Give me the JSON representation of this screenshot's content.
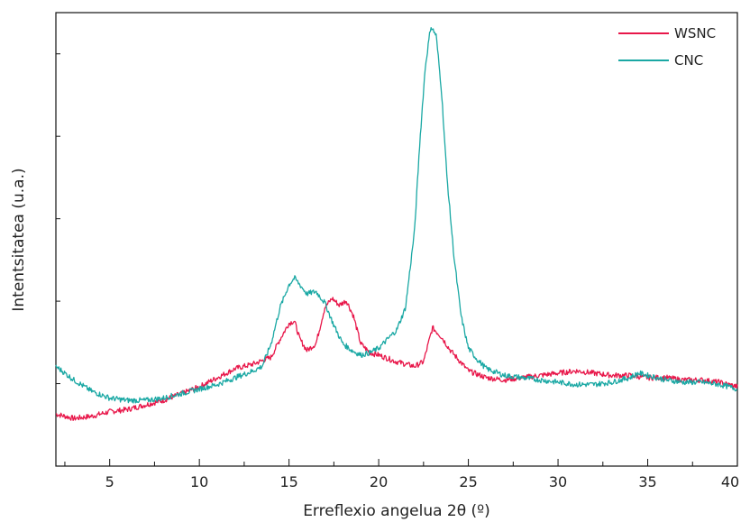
{
  "chart_data": {
    "type": "line",
    "xlabel": "Erreflexio angelua 2θ (º)",
    "ylabel": "Intentsitatea (u.a.)",
    "xlim": [
      2,
      40
    ],
    "ylim": [
      0,
      100
    ],
    "x_ticks": [
      5,
      10,
      15,
      20,
      25,
      30,
      35,
      40
    ],
    "y_tick_labels_shown": false,
    "grid": false,
    "legend": "top-right",
    "colors": {
      "WSNC": "#e8174a",
      "CNC": "#1aa8a4"
    },
    "series": [
      {
        "name": "WSNC",
        "x": [
          2,
          3,
          4,
          5,
          6,
          7,
          8,
          9,
          10,
          11,
          12,
          13,
          14,
          14.5,
          15,
          15.3,
          15.6,
          16,
          16.5,
          17,
          17.4,
          17.8,
          18.2,
          18.6,
          19,
          19.5,
          20,
          21,
          22,
          22.5,
          23,
          23.5,
          24,
          25,
          26,
          27,
          28,
          29,
          30,
          31,
          32,
          33,
          34,
          35,
          36,
          37,
          38,
          39,
          40
        ],
        "y": [
          11.5,
          10.5,
          11,
          12,
          12.5,
          13.5,
          14.5,
          16,
          17.5,
          19.5,
          21.5,
          22.5,
          24,
          28,
          31.5,
          32,
          28,
          25.5,
          27,
          35,
          37,
          35.5,
          36.5,
          33,
          27,
          25,
          24.5,
          23,
          22,
          23,
          30.5,
          28.5,
          25.5,
          21,
          19.5,
          19,
          19.5,
          20,
          20.5,
          21,
          20.5,
          20,
          20,
          19.5,
          19.5,
          19,
          19,
          18.5,
          17.5
        ]
      },
      {
        "name": "CNC",
        "x": [
          2,
          3,
          4,
          5,
          6,
          7,
          8,
          9,
          10,
          11,
          12,
          13,
          13.5,
          14,
          14.5,
          15,
          15.3,
          15.6,
          16,
          16.5,
          17,
          17.5,
          18,
          18.5,
          19,
          19.5,
          20,
          20.5,
          21,
          21.5,
          22,
          22.3,
          22.6,
          22.9,
          23.2,
          23.5,
          23.8,
          24.2,
          24.6,
          25,
          25.5,
          26,
          27,
          28,
          29,
          30,
          31,
          32,
          33,
          34,
          34.5,
          35,
          36,
          37,
          38,
          39,
          40
        ],
        "y": [
          22,
          19,
          16.5,
          15,
          14.5,
          14.5,
          15,
          16,
          17,
          18,
          19.5,
          21,
          22,
          27,
          35,
          40,
          41.5,
          40,
          38,
          38.5,
          36,
          31,
          27,
          25.5,
          24.5,
          25,
          26,
          28,
          30,
          35,
          52,
          72,
          88,
          97,
          95,
          83,
          64,
          46,
          33,
          26,
          23.5,
          21.5,
          20,
          19.5,
          19,
          18.5,
          18,
          18,
          18.5,
          19.5,
          20.5,
          20,
          19,
          18.5,
          18.5,
          18,
          17
        ]
      }
    ]
  }
}
